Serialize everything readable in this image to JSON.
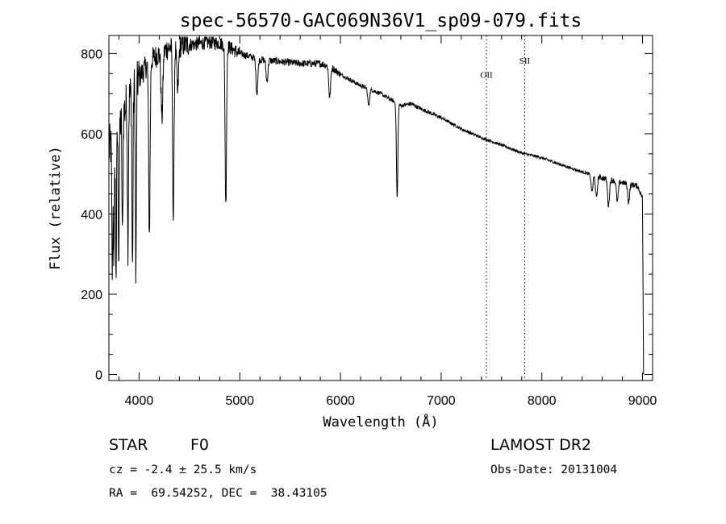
{
  "chart_data": {
    "type": "line",
    "title": "spec-56570-GAC069N36V1_sp09-079.fits",
    "xlabel": "Wavelength (Å)",
    "ylabel": "Flux (relative)",
    "xlim": [
      3700,
      9100
    ],
    "ylim": [
      -15,
      845
    ],
    "x_ticks": [
      4000,
      5000,
      6000,
      7000,
      8000,
      9000
    ],
    "y_ticks": [
      0,
      200,
      400,
      600,
      800
    ],
    "grid": false,
    "series": [
      {
        "continuum": [
          [
            3700,
            560
          ],
          [
            3800,
            620
          ],
          [
            3900,
            690
          ],
          [
            4000,
            740
          ],
          [
            4100,
            780
          ],
          [
            4200,
            800
          ],
          [
            4300,
            815
          ],
          [
            4400,
            820
          ],
          [
            4500,
            822
          ],
          [
            4600,
            825
          ],
          [
            4700,
            828
          ],
          [
            4800,
            826
          ],
          [
            4900,
            815
          ],
          [
            5000,
            800
          ],
          [
            5200,
            785
          ],
          [
            5400,
            780
          ],
          [
            5600,
            775
          ],
          [
            5800,
            775
          ],
          [
            5900,
            768
          ],
          [
            6000,
            748
          ],
          [
            6200,
            720
          ],
          [
            6400,
            700
          ],
          [
            6500,
            685
          ],
          [
            6600,
            670
          ],
          [
            6700,
            675
          ],
          [
            6800,
            662
          ],
          [
            7000,
            640
          ],
          [
            7200,
            612
          ],
          [
            7400,
            590
          ],
          [
            7600,
            572
          ],
          [
            7800,
            552
          ],
          [
            8000,
            540
          ],
          [
            8200,
            522
          ],
          [
            8400,
            505
          ],
          [
            8600,
            490
          ],
          [
            8800,
            478
          ],
          [
            8950,
            470
          ],
          [
            9000,
            440
          ],
          [
            9010,
            0
          ]
        ],
        "absorption_lines": [
          {
            "x": 3734,
            "y": 250
          },
          {
            "x": 3750,
            "y": 290
          },
          {
            "x": 3771,
            "y": 260
          },
          {
            "x": 3798,
            "y": 300
          },
          {
            "x": 3835,
            "y": 330
          },
          {
            "x": 3889,
            "y": 330
          },
          {
            "x": 3934,
            "y": 260
          },
          {
            "x": 3968,
            "y": 230
          },
          {
            "x": 4102,
            "y": 350
          },
          {
            "x": 4227,
            "y": 640
          },
          {
            "x": 4340,
            "y": 385
          },
          {
            "x": 4383,
            "y": 700
          },
          {
            "x": 4861,
            "y": 420
          },
          {
            "x": 5170,
            "y": 700
          },
          {
            "x": 5270,
            "y": 730
          },
          {
            "x": 5893,
            "y": 690
          },
          {
            "x": 6280,
            "y": 670
          },
          {
            "x": 6563,
            "y": 440
          },
          {
            "x": 8498,
            "y": 455
          },
          {
            "x": 8542,
            "y": 440
          },
          {
            "x": 8662,
            "y": 420
          },
          {
            "x": 8750,
            "y": 430
          },
          {
            "x": 8862,
            "y": 430
          }
        ]
      }
    ],
    "annotations": [
      {
        "label": "OII",
        "x": 7450,
        "y": 740
      },
      {
        "label": "SII",
        "x": 7830,
        "y": 775
      }
    ],
    "vlines": [
      7450,
      7830
    ]
  },
  "info": {
    "object_class": "STAR",
    "subclass": "F0",
    "survey": "LAMOST DR2",
    "redshift": "cz = -2.4 ± 25.5 km/s",
    "obs_date": "Obs-Date: 20131004",
    "coords": "RA =  69.54252, DEC =  38.43105"
  }
}
